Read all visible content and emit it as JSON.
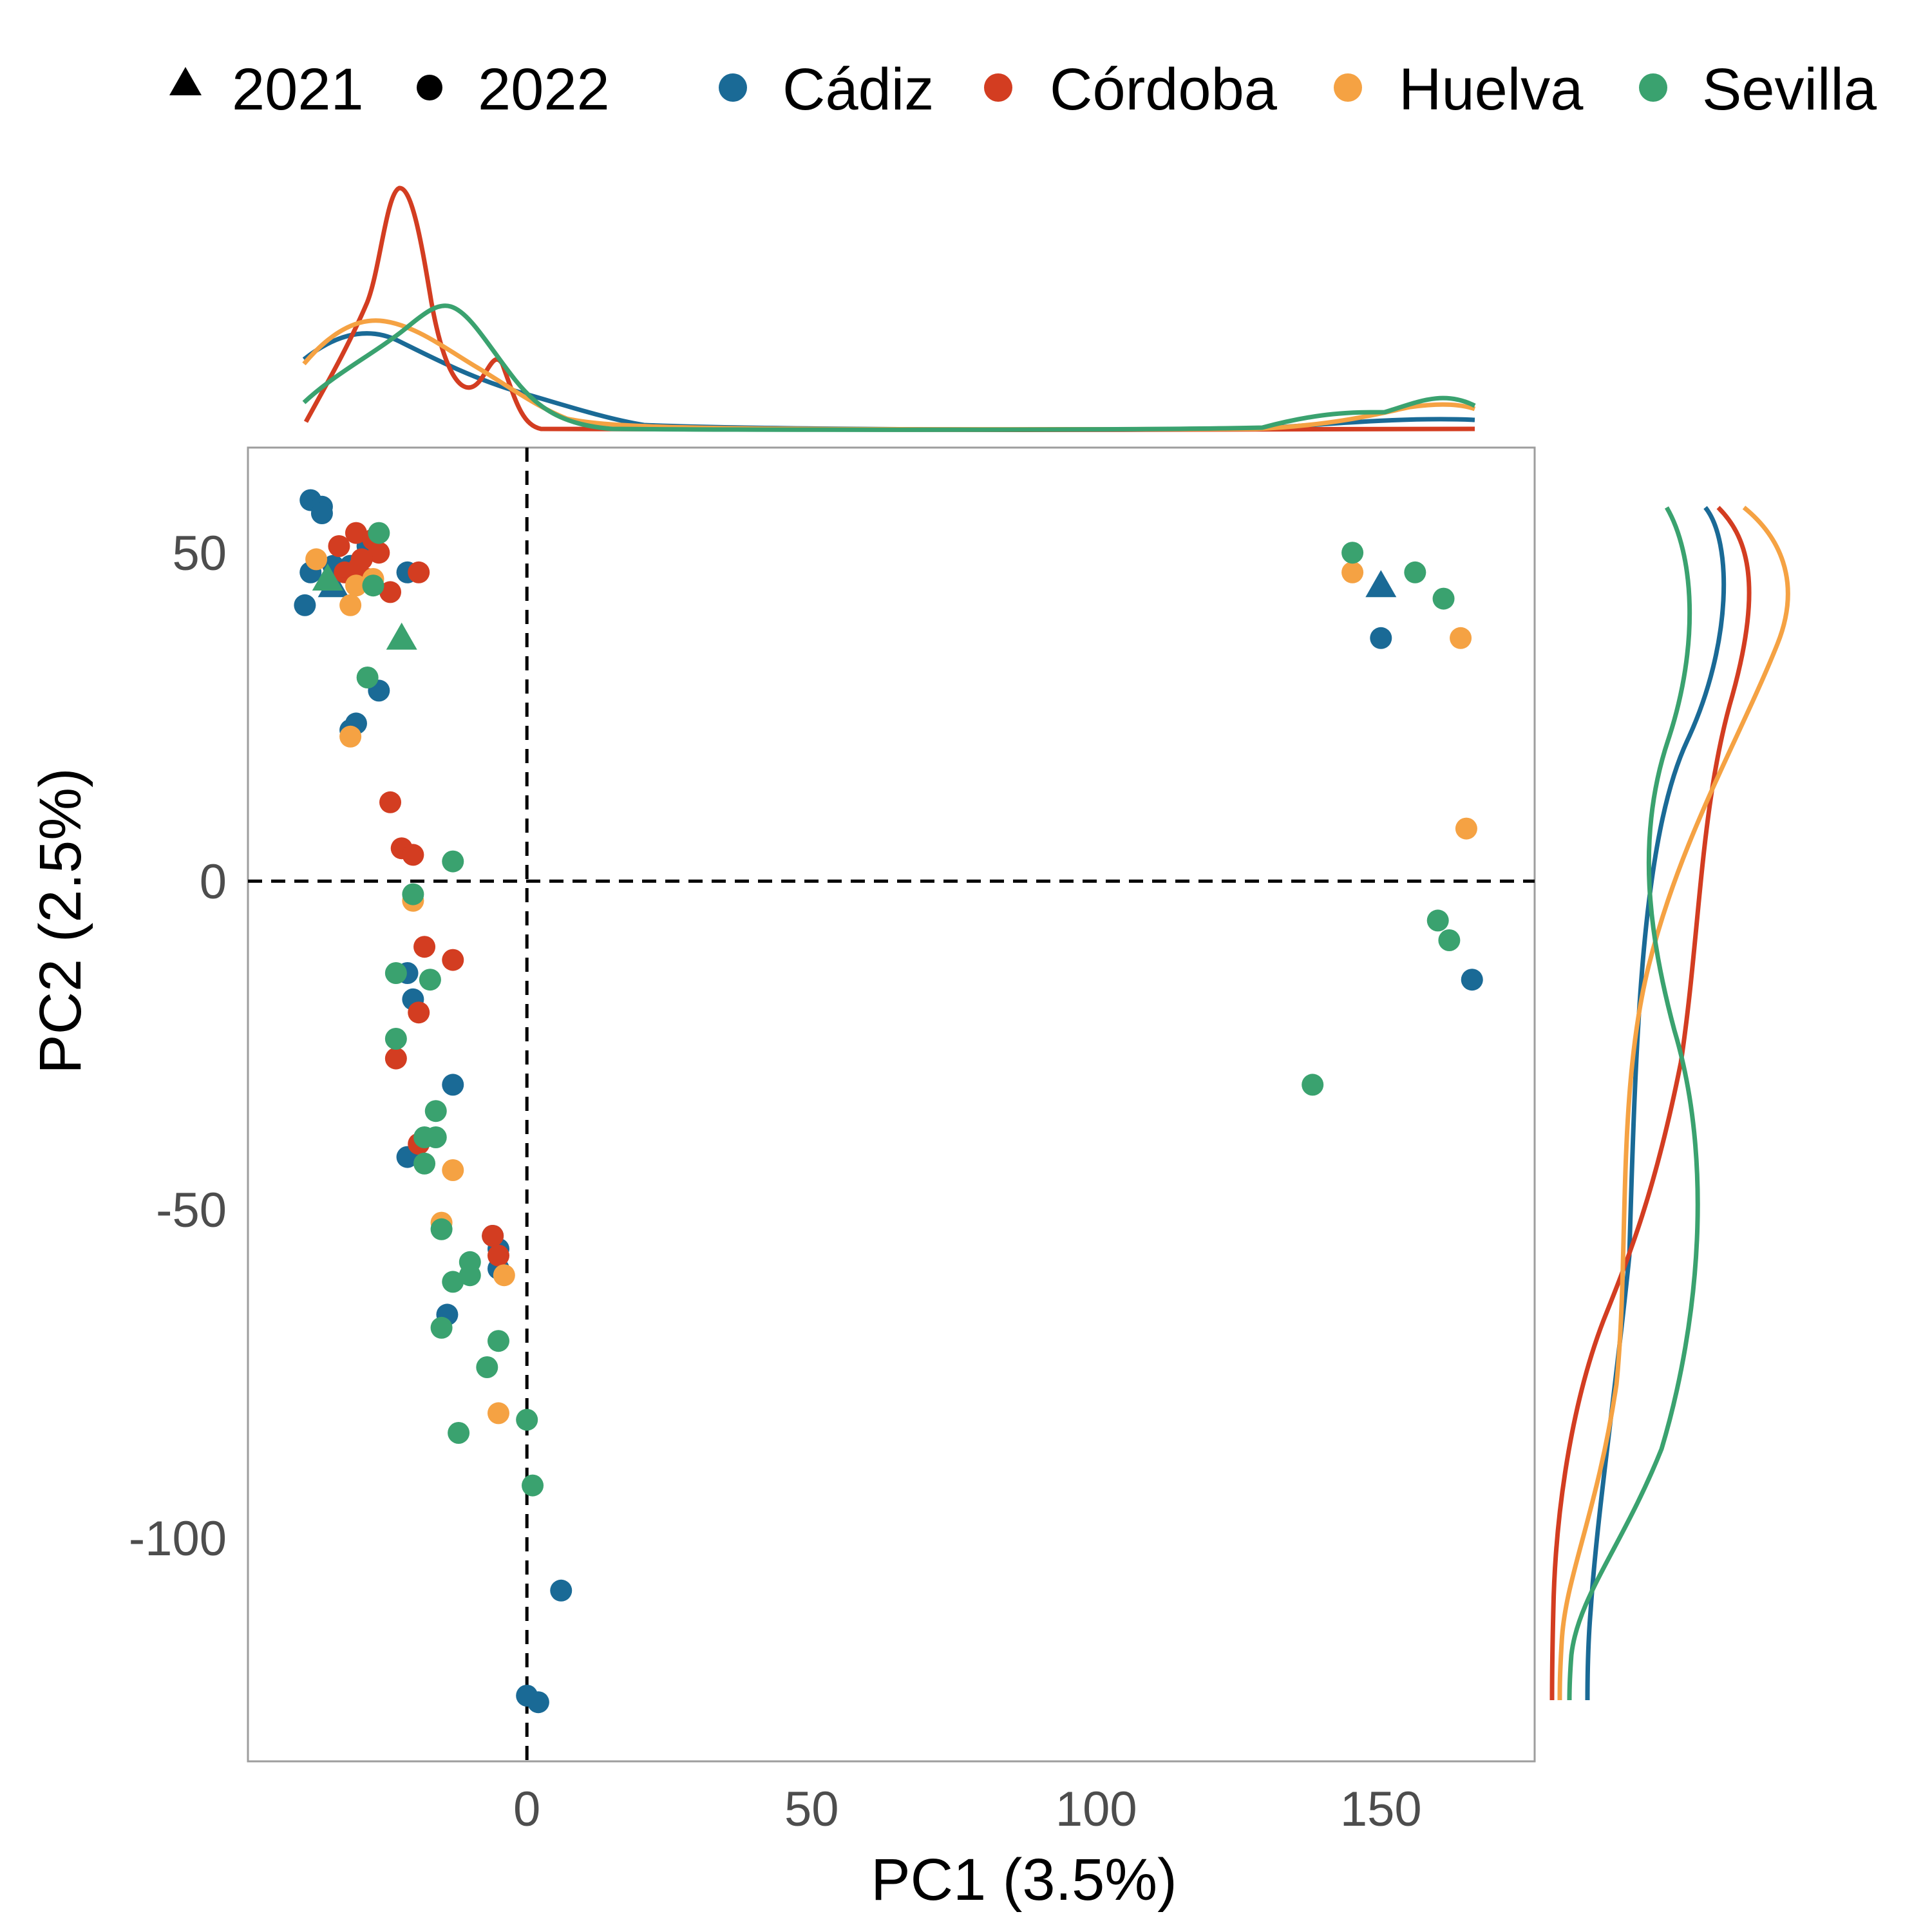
{
  "chart_data": {
    "type": "scatter",
    "xlabel": "PC1 (3.5%)",
    "ylabel": "PC2 (2.5%)",
    "xlim": [
      -49,
      177
    ],
    "ylim": [
      -134,
      66
    ],
    "x_ticks": [
      0,
      50,
      100,
      150
    ],
    "y_ticks": [
      50,
      0,
      -50,
      -100
    ],
    "x_tick_labels": [
      "0",
      "50",
      "100",
      "150"
    ],
    "y_tick_labels": [
      "50",
      "0",
      "-50",
      "-100"
    ],
    "reference_lines": {
      "x": 0,
      "y": 0,
      "style": "dashed"
    },
    "grid": false,
    "legend": {
      "position": "top",
      "shape_entries": [
        {
          "label": "2021",
          "shape": "triangle"
        },
        {
          "label": "2022",
          "shape": "circle"
        }
      ],
      "color_entries": [
        {
          "label": "Cádiz",
          "color": "#1a6a96"
        },
        {
          "label": "Córdoba",
          "color": "#d33d21"
        },
        {
          "label": "Huelva",
          "color": "#f5a243"
        },
        {
          "label": "Sevilla",
          "color": "#3aa26f"
        }
      ]
    },
    "marginal_density": {
      "top": "PC1 by province",
      "right": "PC2 by province"
    },
    "series": [
      {
        "name": "Cádiz",
        "color": "#1a6a96",
        "points_2022": [
          [
            -38,
            58
          ],
          [
            -36,
            57
          ],
          [
            -36,
            56
          ],
          [
            -38,
            47
          ],
          [
            -34,
            48
          ],
          [
            -31,
            48
          ],
          [
            -28,
            51
          ],
          [
            -39,
            42
          ],
          [
            -21,
            47
          ],
          [
            -26,
            29
          ],
          [
            -30,
            24
          ],
          [
            -31,
            23
          ],
          [
            -21,
            -14
          ],
          [
            -20,
            -18
          ],
          [
            -13,
            -31
          ],
          [
            -21,
            -42
          ],
          [
            -14,
            -66
          ],
          [
            -6,
            -54
          ],
          [
            -5,
            -56
          ],
          [
            -5,
            -59
          ],
          [
            0,
            -124
          ],
          [
            2,
            -125
          ],
          [
            6,
            -108
          ],
          [
            150,
            37
          ],
          [
            166,
            -15
          ]
        ],
        "points_2021": [
          [
            -34,
            45
          ],
          [
            150,
            45
          ]
        ]
      },
      {
        "name": "Córdoba",
        "color": "#d33d21",
        "points_2022": [
          [
            -30,
            53
          ],
          [
            -27,
            52
          ],
          [
            -26,
            50
          ],
          [
            -33,
            51
          ],
          [
            -29,
            49
          ],
          [
            -32,
            47
          ],
          [
            -28,
            46
          ],
          [
            -24,
            44
          ],
          [
            -19,
            47
          ],
          [
            -24,
            12
          ],
          [
            -22,
            5
          ],
          [
            -20,
            4
          ],
          [
            -18,
            -10
          ],
          [
            -13,
            -12
          ],
          [
            -19,
            -20
          ],
          [
            -23,
            -27
          ],
          [
            -19,
            -40
          ],
          [
            -6,
            -54
          ],
          [
            -5,
            -57
          ]
        ],
        "points_2021": [
          [
            -30,
            48
          ]
        ]
      },
      {
        "name": "Huelva",
        "color": "#f5a243",
        "points_2022": [
          [
            -37,
            49
          ],
          [
            -31,
            42
          ],
          [
            -30,
            45
          ],
          [
            -27,
            46
          ],
          [
            -31,
            22
          ],
          [
            -20,
            -3
          ],
          [
            -13,
            -44
          ],
          [
            -15,
            -52
          ],
          [
            -4,
            -60
          ],
          [
            -5,
            -81
          ],
          [
            145,
            47
          ],
          [
            164,
            37
          ],
          [
            165,
            8
          ]
        ],
        "points_2021": []
      },
      {
        "name": "Sevilla",
        "color": "#3aa26f",
        "points_2022": [
          [
            -26,
            53
          ],
          [
            -27,
            45
          ],
          [
            -28,
            31
          ],
          [
            -13,
            3
          ],
          [
            -20,
            -2
          ],
          [
            -23,
            -14
          ],
          [
            -17,
            -15
          ],
          [
            -23,
            -24
          ],
          [
            -16,
            -35
          ],
          [
            -18,
            -39
          ],
          [
            -16,
            -39
          ],
          [
            -18,
            -43
          ],
          [
            -15,
            -53
          ],
          [
            -10,
            -58
          ],
          [
            -13,
            -61
          ],
          [
            -10,
            -60
          ],
          [
            -5,
            -70
          ],
          [
            -7,
            -74
          ],
          [
            -15,
            -68
          ],
          [
            -12,
            -84
          ],
          [
            0,
            -82
          ],
          [
            1,
            -92
          ],
          [
            145,
            50
          ],
          [
            156,
            47
          ],
          [
            161,
            43
          ],
          [
            160,
            -6
          ],
          [
            162,
            -9
          ],
          [
            138,
            -31
          ]
        ],
        "points_2021": [
          [
            -35,
            46
          ],
          [
            -22,
            37
          ]
        ]
      }
    ]
  }
}
